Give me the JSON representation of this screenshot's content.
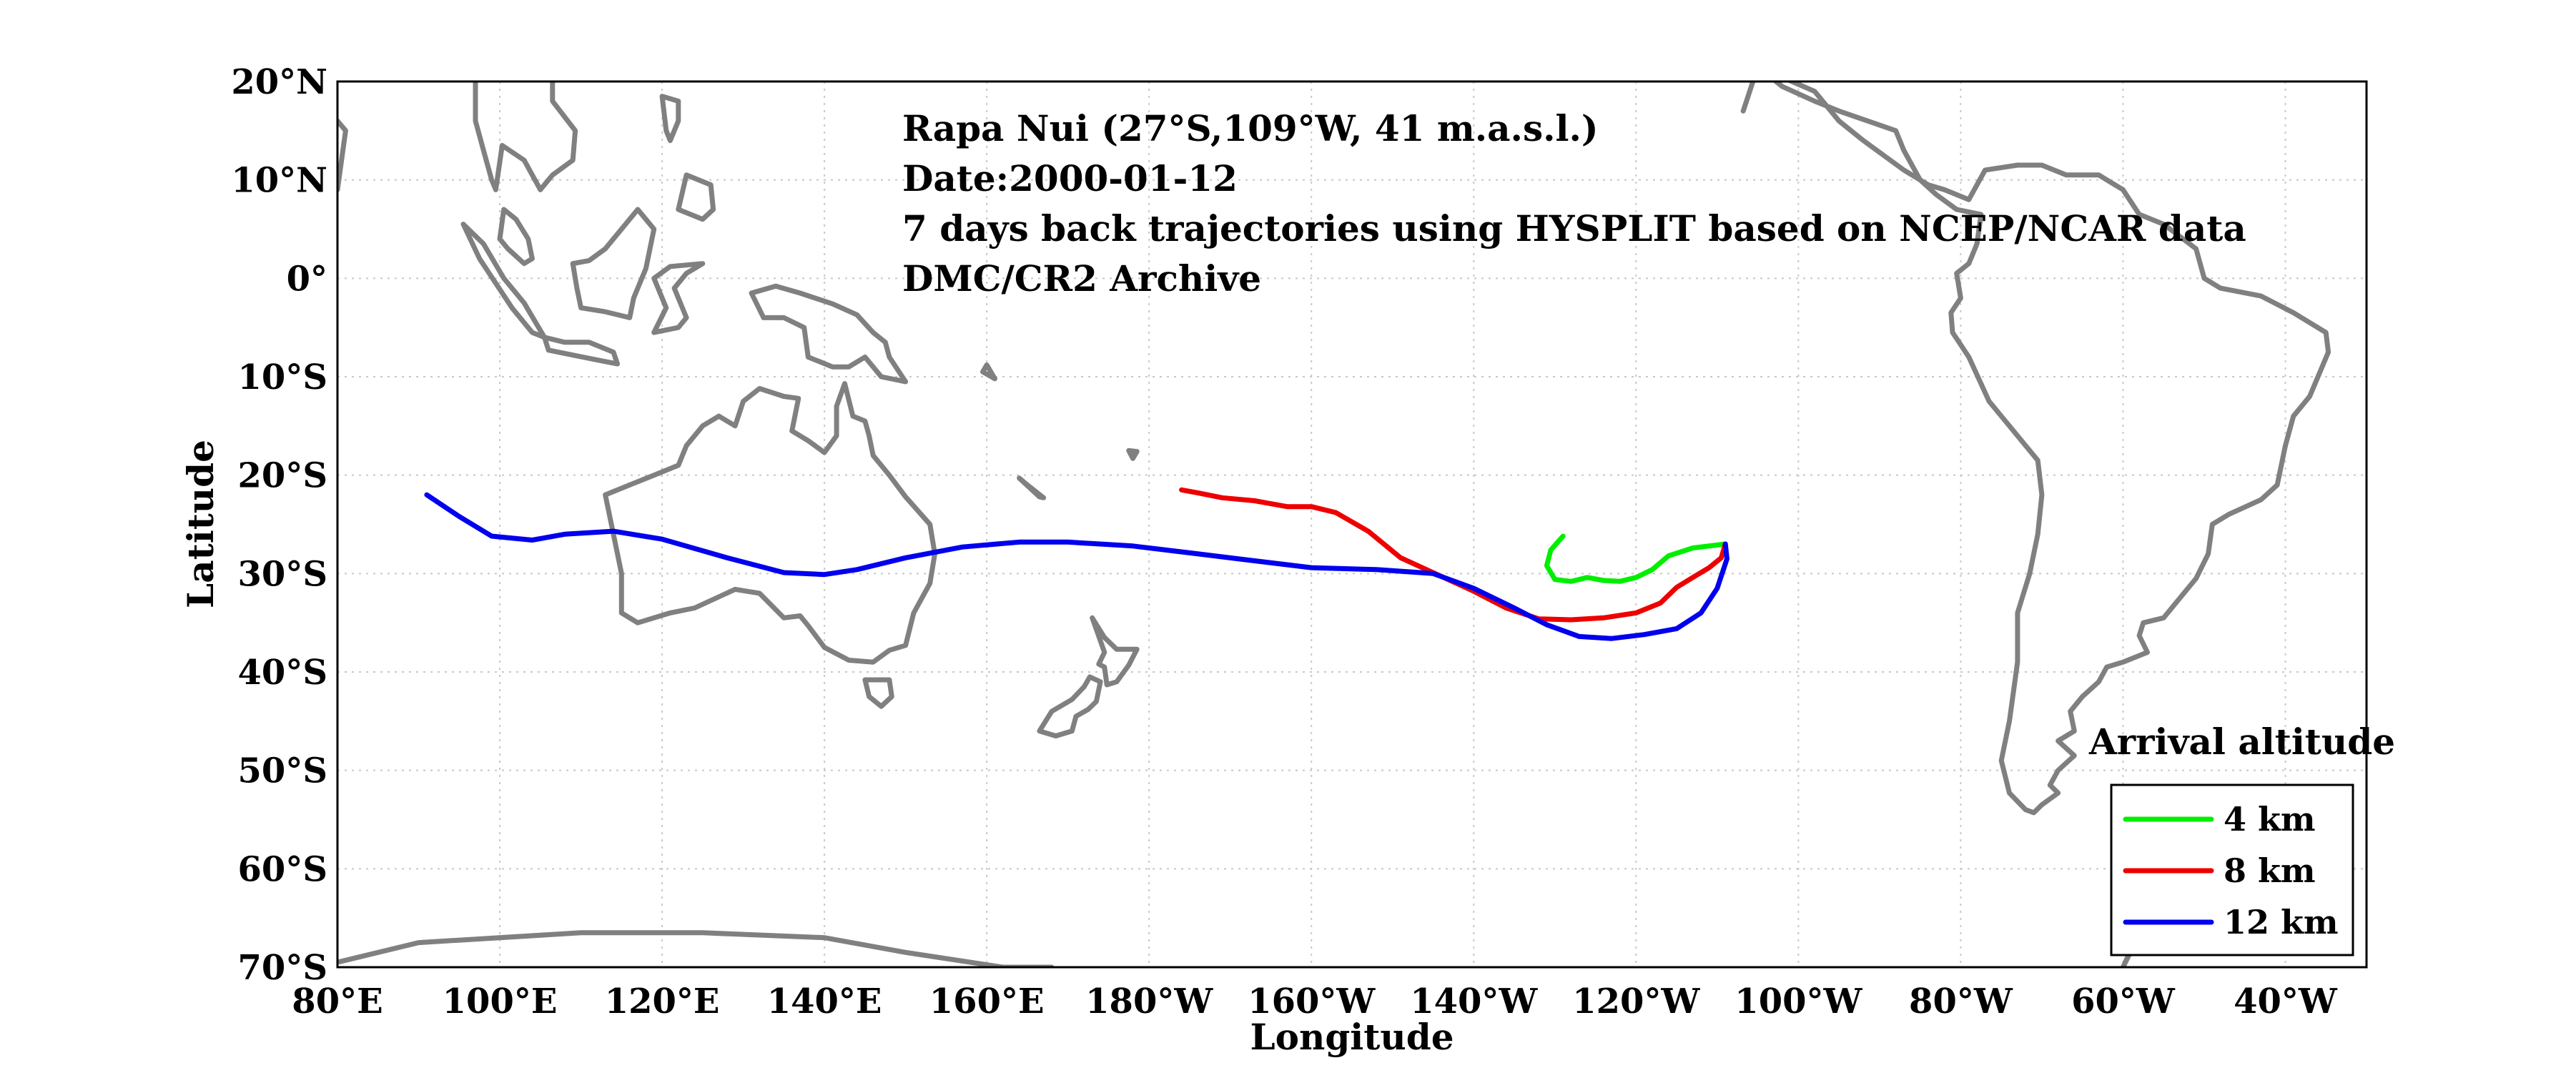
{
  "info": {
    "line1": "Rapa Nui (27°S,109°W, 41 m.a.s.l.)",
    "line2": "Date:2000-01-12",
    "line3": "7 days back trajectories using HYSPLIT based on NCEP/NCAR data",
    "line4": "DMC/CR2 Archive"
  },
  "axes": {
    "xlabel": "Longitude",
    "ylabel": "Latitude",
    "lon_range_east": [
      80,
      330
    ],
    "lat_range": [
      -70,
      20
    ],
    "grid": true,
    "x_ticks": [
      {
        "lon": 80,
        "label": "80°E"
      },
      {
        "lon": 100,
        "label": "100°E"
      },
      {
        "lon": 120,
        "label": "120°E"
      },
      {
        "lon": 140,
        "label": "140°E"
      },
      {
        "lon": 160,
        "label": "160°E"
      },
      {
        "lon": 180,
        "label": "180°W"
      },
      {
        "lon": 200,
        "label": "160°W"
      },
      {
        "lon": 220,
        "label": "140°W"
      },
      {
        "lon": 240,
        "label": "120°W"
      },
      {
        "lon": 260,
        "label": "100°W"
      },
      {
        "lon": 280,
        "label": "80°W"
      },
      {
        "lon": 300,
        "label": "60°W"
      },
      {
        "lon": 320,
        "label": "40°W"
      }
    ],
    "y_ticks": [
      {
        "lat": 20,
        "label": "20°N"
      },
      {
        "lat": 10,
        "label": "10°N"
      },
      {
        "lat": 0,
        "label": "0°"
      },
      {
        "lat": -10,
        "label": "10°S"
      },
      {
        "lat": -20,
        "label": "20°S"
      },
      {
        "lat": -30,
        "label": "30°S"
      },
      {
        "lat": -40,
        "label": "40°S"
      },
      {
        "lat": -50,
        "label": "50°S"
      },
      {
        "lat": -60,
        "label": "60°S"
      },
      {
        "lat": -70,
        "label": "70°S"
      }
    ]
  },
  "legend": {
    "title": "Arrival altitude",
    "position": "bottom-right",
    "items": [
      {
        "label": "4 km",
        "color": "#00ee00"
      },
      {
        "label": "8 km",
        "color": "#ee0000"
      },
      {
        "label": "12 km",
        "color": "#0000ee"
      }
    ]
  },
  "colors": {
    "coastline": "#808080",
    "grid": "#c8c8c8",
    "axes": "#000000"
  },
  "trajectories": [
    {
      "label": "4 km",
      "color": "#00ee00",
      "points": [
        [
          251,
          -27
        ],
        [
          247,
          -27.4
        ],
        [
          244,
          -28.2
        ],
        [
          242,
          -29.6
        ],
        [
          240,
          -30.4
        ],
        [
          238,
          -30.8
        ],
        [
          236,
          -30.7
        ],
        [
          234,
          -30.4
        ],
        [
          232,
          -30.8
        ],
        [
          230,
          -30.6
        ],
        [
          229,
          -29.2
        ],
        [
          229.5,
          -27.6
        ],
        [
          231,
          -26.2
        ]
      ]
    },
    {
      "label": "8 km",
      "color": "#ee0000",
      "points": [
        [
          251,
          -27
        ],
        [
          250.5,
          -28.4
        ],
        [
          249,
          -29.4
        ],
        [
          247,
          -30.4
        ],
        [
          245,
          -31.4
        ],
        [
          243,
          -33
        ],
        [
          240,
          -34
        ],
        [
          236,
          -34.5
        ],
        [
          232,
          -34.7
        ],
        [
          228,
          -34.6
        ],
        [
          224,
          -33.5
        ],
        [
          220,
          -31.8
        ],
        [
          215,
          -29.9
        ],
        [
          211,
          -28.4
        ],
        [
          207,
          -25.7
        ],
        [
          203,
          -23.8
        ],
        [
          200,
          -23.2
        ],
        [
          197,
          -23.2
        ],
        [
          193,
          -22.6
        ],
        [
          189,
          -22.3
        ],
        [
          186,
          -21.8
        ],
        [
          184,
          -21.5
        ]
      ]
    },
    {
      "label": "12 km",
      "color": "#0000ee",
      "points": [
        [
          251,
          -27
        ],
        [
          251.2,
          -28.5
        ],
        [
          250,
          -31.5
        ],
        [
          248,
          -34
        ],
        [
          245,
          -35.6
        ],
        [
          241,
          -36.2
        ],
        [
          237,
          -36.6
        ],
        [
          233,
          -36.4
        ],
        [
          229,
          -35.2
        ],
        [
          225,
          -33.5
        ],
        [
          220,
          -31.5
        ],
        [
          215,
          -30
        ],
        [
          208,
          -29.6
        ],
        [
          200,
          -29.4
        ],
        [
          192,
          -28.6
        ],
        [
          185,
          -27.9
        ],
        [
          178,
          -27.2
        ],
        [
          170,
          -26.8
        ],
        [
          164,
          -26.8
        ],
        [
          157,
          -27.3
        ],
        [
          150,
          -28.4
        ],
        [
          144,
          -29.6
        ],
        [
          140,
          -30.1
        ],
        [
          135,
          -29.9
        ],
        [
          128,
          -28.4
        ],
        [
          120,
          -26.5
        ],
        [
          114,
          -25.7
        ],
        [
          108,
          -26
        ],
        [
          104,
          -26.6
        ],
        [
          99,
          -26.2
        ],
        [
          95,
          -24.2
        ],
        [
          91,
          -22
        ]
      ]
    }
  ],
  "coastlines": [
    [
      [
        113,
        -22
      ],
      [
        114,
        -26
      ],
      [
        115,
        -30
      ],
      [
        115,
        -34
      ],
      [
        117,
        -35
      ],
      [
        121,
        -34
      ],
      [
        124,
        -33.5
      ],
      [
        129,
        -31.6
      ],
      [
        132,
        -32
      ],
      [
        135,
        -34.5
      ],
      [
        137,
        -34.3
      ],
      [
        138,
        -35.3
      ],
      [
        140,
        -37.5
      ],
      [
        143,
        -38.8
      ],
      [
        146,
        -39
      ],
      [
        148,
        -37.8
      ],
      [
        150,
        -37.3
      ],
      [
        151,
        -34
      ],
      [
        153,
        -31
      ],
      [
        153.6,
        -28
      ],
      [
        153,
        -25
      ],
      [
        150,
        -22.2
      ],
      [
        148,
        -20
      ],
      [
        146,
        -18
      ],
      [
        145.5,
        -16
      ],
      [
        145,
        -14.5
      ],
      [
        143.5,
        -14
      ],
      [
        142.5,
        -10.7
      ],
      [
        141.5,
        -13
      ],
      [
        141.5,
        -16
      ],
      [
        140,
        -17.7
      ],
      [
        138,
        -16.5
      ],
      [
        136,
        -15.5
      ],
      [
        136.8,
        -12.2
      ],
      [
        135,
        -12
      ],
      [
        132,
        -11.2
      ],
      [
        130,
        -12.5
      ],
      [
        129,
        -15
      ],
      [
        127,
        -14
      ],
      [
        125,
        -15
      ],
      [
        123,
        -17
      ],
      [
        122,
        -19
      ],
      [
        119,
        -20
      ],
      [
        116,
        -21
      ],
      [
        113,
        -22
      ]
    ],
    [
      [
        145,
        -40.8
      ],
      [
        148,
        -40.8
      ],
      [
        148.3,
        -42.5
      ],
      [
        147,
        -43.5
      ],
      [
        145.5,
        -42.5
      ],
      [
        145,
        -40.8
      ]
    ],
    [
      [
        173,
        -34.5
      ],
      [
        174.5,
        -36.5
      ],
      [
        176,
        -37.7
      ],
      [
        178.5,
        -37.7
      ],
      [
        177.5,
        -39.3
      ],
      [
        176,
        -41
      ],
      [
        174.8,
        -41.3
      ],
      [
        174.5,
        -39.5
      ],
      [
        173.8,
        -39.2
      ],
      [
        174.5,
        -38
      ],
      [
        173,
        -34.5
      ]
    ],
    [
      [
        172.7,
        -40.5
      ],
      [
        174,
        -41
      ],
      [
        173.5,
        -43
      ],
      [
        172.5,
        -43.8
      ],
      [
        171,
        -44.5
      ],
      [
        170.5,
        -46
      ],
      [
        168.5,
        -46.5
      ],
      [
        166.5,
        -46
      ],
      [
        168,
        -44
      ],
      [
        170.5,
        -42.8
      ],
      [
        172,
        -41.5
      ],
      [
        172.7,
        -40.5
      ]
    ],
    [
      [
        141,
        -2.6
      ],
      [
        144,
        -3.7
      ],
      [
        146,
        -5.5
      ],
      [
        147.5,
        -6.5
      ],
      [
        148,
        -8
      ],
      [
        150,
        -10.5
      ],
      [
        147,
        -10
      ],
      [
        145,
        -8
      ],
      [
        143,
        -9
      ],
      [
        141,
        -9
      ],
      [
        138,
        -8
      ],
      [
        137.5,
        -5
      ],
      [
        135,
        -4
      ],
      [
        132.5,
        -4
      ],
      [
        131,
        -1.5
      ],
      [
        134,
        -0.8
      ],
      [
        137,
        -1.5
      ],
      [
        141,
        -2.6
      ]
    ],
    [
      [
        109,
        1.5
      ],
      [
        109.5,
        -1
      ],
      [
        110,
        -3
      ],
      [
        113,
        -3.4
      ],
      [
        116,
        -4
      ],
      [
        116.5,
        -2
      ],
      [
        118,
        1
      ],
      [
        119,
        5
      ],
      [
        117,
        7
      ],
      [
        115,
        5
      ],
      [
        113,
        3
      ],
      [
        111,
        1.8
      ],
      [
        109,
        1.5
      ]
    ],
    [
      [
        95.5,
        5.5
      ],
      [
        98,
        3.5
      ],
      [
        100.5,
        0
      ],
      [
        103,
        -2.5
      ],
      [
        105.5,
        -6
      ],
      [
        104,
        -5.5
      ],
      [
        101.5,
        -3
      ],
      [
        99.5,
        -0.5
      ],
      [
        97.5,
        2
      ],
      [
        95.5,
        5.5
      ]
    ],
    [
      [
        105.5,
        -6
      ],
      [
        108,
        -6.5
      ],
      [
        111,
        -6.5
      ],
      [
        114,
        -7.5
      ],
      [
        114.5,
        -8.7
      ],
      [
        112,
        -8.3
      ],
      [
        109,
        -7.8
      ],
      [
        106,
        -7.3
      ],
      [
        105.5,
        -6
      ]
    ],
    [
      [
        119,
        -5.5
      ],
      [
        120.5,
        -3
      ],
      [
        119,
        0
      ],
      [
        121,
        1.2
      ],
      [
        125,
        1.5
      ],
      [
        123,
        0.5
      ],
      [
        121.5,
        -1
      ],
      [
        123,
        -4
      ],
      [
        122,
        -5
      ],
      [
        119,
        -5.5
      ]
    ],
    [
      [
        120,
        18.5
      ],
      [
        122,
        18
      ],
      [
        122,
        16
      ],
      [
        121,
        14
      ],
      [
        120.5,
        15
      ],
      [
        120,
        18.5
      ]
    ],
    [
      [
        123,
        10.5
      ],
      [
        126,
        9.5
      ],
      [
        126.3,
        7
      ],
      [
        125,
        6
      ],
      [
        122,
        7
      ],
      [
        123,
        10.5
      ]
    ],
    [
      [
        103,
        1.5
      ],
      [
        104,
        2
      ],
      [
        103.5,
        4
      ],
      [
        102,
        6
      ],
      [
        100.5,
        7
      ],
      [
        100,
        4
      ],
      [
        101,
        3
      ],
      [
        103,
        1.5
      ]
    ],
    [
      [
        97,
        16
      ],
      [
        98,
        13
      ],
      [
        99,
        10
      ],
      [
        99.5,
        9
      ],
      [
        100.3,
        13.5
      ],
      [
        103,
        12
      ],
      [
        105,
        9
      ],
      [
        106.5,
        10.5
      ],
      [
        109,
        12
      ],
      [
        109.3,
        15
      ],
      [
        106.5,
        18
      ],
      [
        106.5,
        20
      ],
      [
        108,
        21.5
      ],
      [
        97,
        21.5
      ],
      [
        97,
        16
      ]
    ],
    [
      [
        80,
        9
      ],
      [
        81,
        15
      ],
      [
        80,
        16
      ]
    ],
    [
      [
        159.5,
        -9.5
      ],
      [
        161,
        -10.2
      ],
      [
        160,
        -8.8
      ],
      [
        159.5,
        -9.5
      ]
    ],
    [
      [
        164,
        -20.3
      ],
      [
        166.5,
        -22.2
      ],
      [
        167,
        -22.3
      ],
      [
        165,
        -21
      ],
      [
        164,
        -20.3
      ]
    ],
    [
      [
        177.5,
        -17.5
      ],
      [
        178.5,
        -17.6
      ],
      [
        178,
        -18.3
      ],
      [
        177.5,
        -17.5
      ]
    ],
    [
      [
        253.2,
        17
      ],
      [
        255,
        21.5
      ]
    ],
    [
      [
        255,
        21.5
      ],
      [
        262,
        19
      ],
      [
        265,
        16
      ],
      [
        268,
        14
      ],
      [
        273,
        11
      ],
      [
        276,
        9.5
      ],
      [
        278,
        9
      ],
      [
        281,
        8
      ],
      [
        283,
        11
      ],
      [
        287,
        11.5
      ],
      [
        290,
        11.5
      ],
      [
        293,
        10.5
      ],
      [
        297,
        10.5
      ],
      [
        300,
        9
      ],
      [
        302,
        6.5
      ],
      [
        305,
        5.5
      ],
      [
        309,
        3
      ],
      [
        310,
        0
      ],
      [
        312,
        -1
      ],
      [
        317,
        -1.8
      ],
      [
        321,
        -3.5
      ],
      [
        325,
        -5.5
      ],
      [
        325.3,
        -7.5
      ],
      [
        323,
        -12
      ],
      [
        321,
        -14
      ],
      [
        320,
        -17
      ],
      [
        319,
        -21
      ],
      [
        317,
        -22.5
      ],
      [
        313,
        -24
      ],
      [
        311,
        -25
      ],
      [
        310.5,
        -28
      ],
      [
        309,
        -30.5
      ],
      [
        306.5,
        -33
      ],
      [
        305,
        -34.5
      ],
      [
        302.5,
        -35
      ],
      [
        302,
        -36.3
      ],
      [
        303,
        -38
      ],
      [
        300,
        -39
      ],
      [
        298,
        -39.5
      ],
      [
        297,
        -41
      ],
      [
        295,
        -42.5
      ],
      [
        293.5,
        -44
      ],
      [
        294,
        -46
      ],
      [
        292,
        -47
      ],
      [
        294,
        -48.5
      ],
      [
        292,
        -50
      ],
      [
        291,
        -51.5
      ],
      [
        292,
        -52.3
      ],
      [
        290,
        -53.5
      ],
      [
        289,
        -54.3
      ],
      [
        288,
        -54
      ],
      [
        286,
        -52.3
      ],
      [
        285,
        -49
      ],
      [
        286,
        -45
      ],
      [
        286.5,
        -42
      ],
      [
        287,
        -39
      ],
      [
        287,
        -34
      ],
      [
        288.5,
        -30
      ],
      [
        289.5,
        -26
      ],
      [
        290,
        -22
      ],
      [
        289.5,
        -18.5
      ],
      [
        286,
        -15
      ],
      [
        283.5,
        -12.5
      ],
      [
        281,
        -8
      ],
      [
        279,
        -5.5
      ],
      [
        278.8,
        -3.5
      ],
      [
        280,
        -2
      ],
      [
        279.5,
        0.5
      ],
      [
        281,
        1.5
      ],
      [
        282,
        3.5
      ],
      [
        282.5,
        6.5
      ],
      [
        279.5,
        7
      ],
      [
        277,
        8.5
      ],
      [
        275,
        10
      ],
      [
        273,
        13
      ],
      [
        272,
        15
      ],
      [
        268.5,
        16
      ],
      [
        265,
        17
      ],
      [
        262,
        18
      ],
      [
        258,
        19.5
      ],
      [
        255,
        21.5
      ]
    ],
    [
      [
        80,
        -69.5
      ],
      [
        90,
        -67.5
      ],
      [
        110,
        -66.5
      ],
      [
        125,
        -66.5
      ],
      [
        140,
        -67
      ],
      [
        150,
        -68.5
      ],
      [
        162,
        -70
      ],
      [
        168,
        -70
      ]
    ],
    [
      [
        300,
        -70
      ],
      [
        303,
        -65
      ],
      [
        305,
        -63.5
      ],
      [
        303,
        -64.5
      ],
      [
        300,
        -70
      ]
    ]
  ]
}
